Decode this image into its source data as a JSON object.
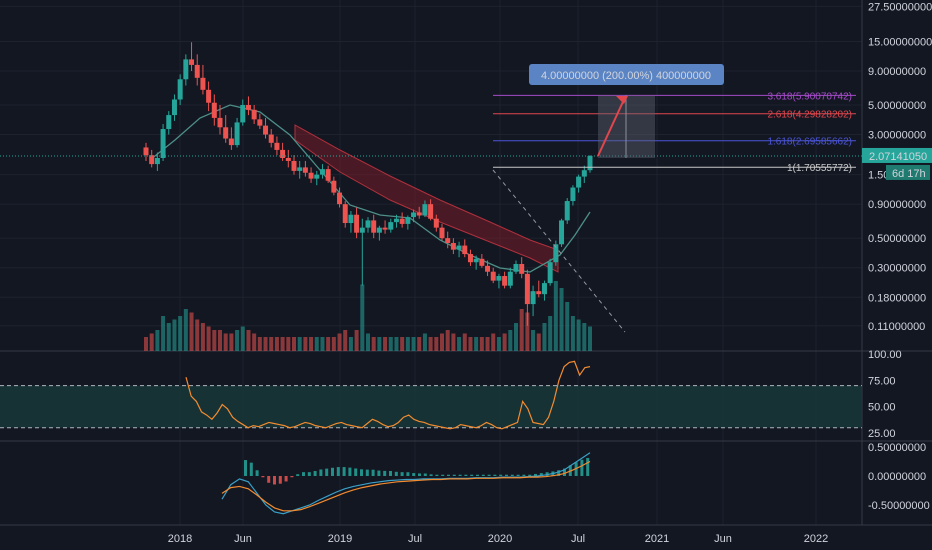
{
  "chart_data": [
    {
      "type": "candlestick",
      "scale": "log",
      "price_axis_labels": [
        "27.50000000",
        "15.00000000",
        "9.00000000",
        "5.00000000",
        "3.00000000",
        "1.50",
        "0.90000000",
        "0.50000000",
        "0.30000000",
        "0.18000000",
        "0.11000000"
      ],
      "price_axis_values": [
        27.5,
        15,
        9,
        5,
        3,
        1.5,
        0.9,
        0.5,
        0.3,
        0.18,
        0.11
      ],
      "time_axis_labels": [
        "2018",
        "Jun",
        "2019",
        "Jul",
        "2020",
        "Jul",
        "2021",
        "Jun",
        "2022"
      ],
      "current_price_label": "2.07141050",
      "countdown_label": "6d 17h",
      "measure_label": "4.00000000 (200.00%) 400000000",
      "fib_levels": [
        {
          "label": "3.618(5.90070742)",
          "value": 5.9007,
          "color": "#a64bc9"
        },
        {
          "label": "2.618(4.29828202)",
          "value": 4.2983,
          "color": "#e0464c"
        },
        {
          "label": "1.618(2.69585662)",
          "value": 2.6959,
          "color": "#4b55d6"
        },
        {
          "label": "1(1.70555772)",
          "value": 1.7056,
          "color": "#c8c8c8"
        }
      ],
      "colors": {
        "up": "#26a69a",
        "down": "#ef5350",
        "ma": "#4e8f88",
        "cloud": "#8b1e2a",
        "bg": "#131722"
      },
      "ohlc": [
        [
          2.4,
          2.6,
          1.9,
          2.1
        ],
        [
          2.1,
          2.3,
          1.7,
          1.8
        ],
        [
          1.8,
          2.2,
          1.6,
          2.0
        ],
        [
          2.0,
          3.6,
          1.9,
          3.3
        ],
        [
          3.3,
          4.5,
          3.0,
          4.2
        ],
        [
          4.2,
          6.0,
          3.8,
          5.5
        ],
        [
          5.5,
          8.5,
          5.0,
          7.8
        ],
        [
          7.8,
          12.0,
          7.0,
          11.0
        ],
        [
          11.0,
          14.8,
          9.0,
          10.0
        ],
        [
          10.0,
          12.0,
          7.0,
          8.0
        ],
        [
          8.0,
          10.0,
          6.0,
          6.5
        ],
        [
          6.5,
          7.5,
          4.5,
          5.2
        ],
        [
          5.2,
          6.0,
          3.5,
          4.0
        ],
        [
          4.0,
          5.0,
          3.0,
          3.4
        ],
        [
          3.4,
          4.2,
          2.6,
          2.8
        ],
        [
          2.8,
          3.4,
          2.3,
          2.5
        ],
        [
          2.5,
          4.0,
          2.4,
          3.7
        ],
        [
          3.7,
          5.5,
          3.5,
          5.0
        ],
        [
          5.0,
          5.8,
          4.2,
          4.6
        ],
        [
          4.6,
          5.0,
          3.6,
          3.9
        ],
        [
          3.9,
          4.3,
          3.3,
          3.5
        ],
        [
          3.5,
          4.0,
          2.8,
          3.0
        ],
        [
          3.0,
          3.3,
          2.4,
          2.6
        ],
        [
          2.6,
          2.9,
          2.1,
          2.3
        ],
        [
          2.3,
          2.6,
          1.9,
          2.0
        ],
        [
          2.0,
          2.3,
          1.7,
          1.9
        ],
        [
          1.9,
          2.1,
          1.5,
          1.6
        ],
        [
          1.6,
          1.9,
          1.4,
          1.7
        ],
        [
          1.7,
          1.9,
          1.45,
          1.55
        ],
        [
          1.55,
          1.7,
          1.3,
          1.4
        ],
        [
          1.4,
          1.6,
          1.25,
          1.5
        ],
        [
          1.5,
          1.8,
          1.4,
          1.65
        ],
        [
          1.65,
          1.75,
          1.3,
          1.35
        ],
        [
          1.35,
          1.45,
          1.05,
          1.1
        ],
        [
          1.1,
          1.2,
          0.85,
          0.9
        ],
        [
          0.9,
          0.95,
          0.6,
          0.65
        ],
        [
          0.65,
          0.8,
          0.55,
          0.75
        ],
        [
          0.75,
          0.85,
          0.5,
          0.55
        ],
        [
          0.55,
          0.7,
          0.22,
          0.6
        ],
        [
          0.6,
          0.72,
          0.55,
          0.68
        ],
        [
          0.68,
          0.75,
          0.5,
          0.55
        ],
        [
          0.55,
          0.62,
          0.48,
          0.6
        ],
        [
          0.6,
          0.68,
          0.54,
          0.58
        ],
        [
          0.58,
          0.7,
          0.55,
          0.66
        ],
        [
          0.66,
          0.75,
          0.6,
          0.7
        ],
        [
          0.7,
          0.78,
          0.6,
          0.64
        ],
        [
          0.64,
          0.74,
          0.58,
          0.72
        ],
        [
          0.72,
          0.82,
          0.66,
          0.78
        ],
        [
          0.78,
          0.86,
          0.7,
          0.74
        ],
        [
          0.74,
          0.96,
          0.72,
          0.9
        ],
        [
          0.9,
          0.98,
          0.68,
          0.7
        ],
        [
          0.7,
          0.75,
          0.56,
          0.6
        ],
        [
          0.6,
          0.64,
          0.48,
          0.5
        ],
        [
          0.5,
          0.56,
          0.42,
          0.46
        ],
        [
          0.46,
          0.5,
          0.38,
          0.41
        ],
        [
          0.41,
          0.47,
          0.36,
          0.44
        ],
        [
          0.44,
          0.49,
          0.36,
          0.38
        ],
        [
          0.38,
          0.41,
          0.31,
          0.33
        ],
        [
          0.33,
          0.37,
          0.29,
          0.35
        ],
        [
          0.35,
          0.38,
          0.3,
          0.31
        ],
        [
          0.31,
          0.34,
          0.26,
          0.28
        ],
        [
          0.28,
          0.3,
          0.23,
          0.24
        ],
        [
          0.24,
          0.27,
          0.21,
          0.26
        ],
        [
          0.26,
          0.28,
          0.21,
          0.22
        ],
        [
          0.22,
          0.3,
          0.21,
          0.28
        ],
        [
          0.28,
          0.34,
          0.27,
          0.32
        ],
        [
          0.32,
          0.36,
          0.25,
          0.27
        ],
        [
          0.27,
          0.29,
          0.11,
          0.16
        ],
        [
          0.16,
          0.22,
          0.13,
          0.2
        ],
        [
          0.2,
          0.24,
          0.18,
          0.19
        ],
        [
          0.19,
          0.24,
          0.17,
          0.23
        ],
        [
          0.23,
          0.35,
          0.22,
          0.33
        ],
        [
          0.33,
          0.48,
          0.31,
          0.45
        ],
        [
          0.45,
          0.7,
          0.43,
          0.68
        ],
        [
          0.68,
          1.0,
          0.64,
          0.95
        ],
        [
          0.95,
          1.25,
          0.88,
          1.2
        ],
        [
          1.2,
          1.5,
          1.1,
          1.45
        ],
        [
          1.45,
          1.75,
          1.3,
          1.62
        ],
        [
          1.62,
          2.1,
          1.55,
          2.07
        ]
      ],
      "volume": [
        0.2,
        0.25,
        0.3,
        0.5,
        0.4,
        0.45,
        0.5,
        0.6,
        0.55,
        0.45,
        0.4,
        0.35,
        0.3,
        0.3,
        0.25,
        0.25,
        0.3,
        0.35,
        0.3,
        0.25,
        0.2,
        0.2,
        0.2,
        0.2,
        0.2,
        0.2,
        0.2,
        0.2,
        0.2,
        0.2,
        0.2,
        0.2,
        0.2,
        0.2,
        0.25,
        0.3,
        0.2,
        0.3,
        0.95,
        0.25,
        0.2,
        0.2,
        0.2,
        0.2,
        0.2,
        0.2,
        0.2,
        0.2,
        0.2,
        0.25,
        0.2,
        0.2,
        0.25,
        0.3,
        0.25,
        0.2,
        0.25,
        0.2,
        0.2,
        0.2,
        0.2,
        0.25,
        0.2,
        0.25,
        0.3,
        0.4,
        0.6,
        0.55,
        0.3,
        0.25,
        0.4,
        0.5,
        1.0,
        0.9,
        0.7,
        0.5,
        0.45,
        0.4,
        0.35
      ]
    },
    {
      "type": "line",
      "panel": "oscillator",
      "axis_labels": [
        "100.00",
        "75.00",
        "50.00",
        "25.00"
      ],
      "axis_values": [
        100,
        75,
        50,
        25
      ],
      "band": [
        30,
        70
      ],
      "series": [
        {
          "values": [
            78,
            60,
            55,
            45,
            42,
            38,
            44,
            52,
            48,
            40,
            36,
            33,
            30,
            32,
            31,
            33,
            35,
            34,
            33,
            32,
            30,
            31,
            33,
            35,
            34,
            32,
            31,
            30,
            32,
            34,
            35,
            33,
            32,
            31,
            30,
            34,
            38,
            36,
            33,
            31,
            32,
            35,
            40,
            42,
            38,
            36,
            35,
            33,
            32,
            31,
            30,
            29,
            30,
            33,
            32,
            31,
            30,
            32,
            35,
            33,
            30,
            29,
            31,
            33,
            35,
            55,
            48,
            35,
            34,
            33,
            40,
            55,
            75,
            88,
            92,
            93,
            80,
            87,
            88
          ],
          "color": "#f28b30"
        }
      ]
    },
    {
      "type": "line",
      "panel": "macd",
      "axis_labels": [
        "0.50000000",
        "0.00000000",
        "-0.50000000"
      ],
      "axis_values": [
        0.5,
        0,
        -0.5
      ],
      "series": [
        {
          "values": [
            -0.4,
            -0.15,
            -0.05,
            -0.1,
            -0.3,
            -0.5,
            -0.62,
            -0.65,
            -0.6,
            -0.55,
            -0.5,
            -0.42,
            -0.35,
            -0.28,
            -0.22,
            -0.18,
            -0.15,
            -0.12,
            -0.1,
            -0.08,
            -0.07,
            -0.06,
            -0.06,
            -0.05,
            -0.05,
            -0.05,
            -0.04,
            -0.04,
            -0.04,
            -0.03,
            -0.03,
            -0.03,
            -0.02,
            -0.02,
            -0.02,
            -0.01,
            0,
            0.02,
            0.05,
            0.1,
            0.2,
            0.3,
            0.4
          ],
          "color": "#3aa0c7"
        },
        {
          "values": [
            -0.3,
            -0.2,
            -0.18,
            -0.22,
            -0.33,
            -0.45,
            -0.55,
            -0.6,
            -0.6,
            -0.58,
            -0.53,
            -0.47,
            -0.41,
            -0.35,
            -0.29,
            -0.24,
            -0.2,
            -0.17,
            -0.14,
            -0.12,
            -0.1,
            -0.09,
            -0.08,
            -0.07,
            -0.06,
            -0.06,
            -0.05,
            -0.05,
            -0.05,
            -0.04,
            -0.04,
            -0.04,
            -0.03,
            -0.03,
            -0.03,
            -0.02,
            -0.02,
            -0.01,
            0.01,
            0.04,
            0.1,
            0.17,
            0.25
          ],
          "color": "#f28b30"
        }
      ]
    }
  ]
}
